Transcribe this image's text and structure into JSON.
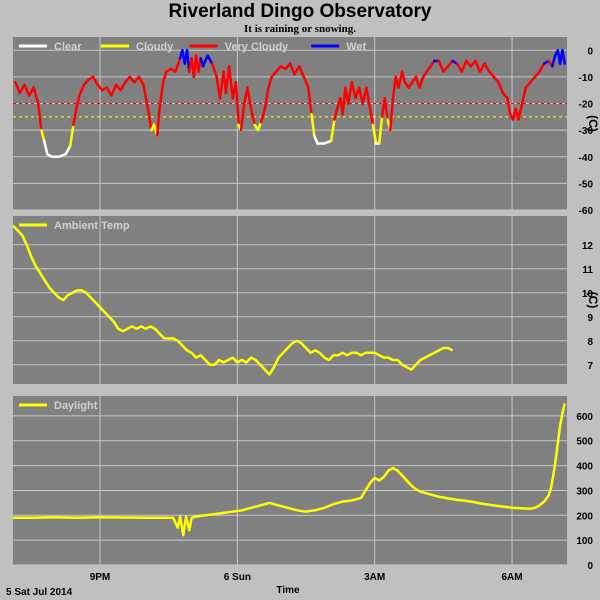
{
  "page": {
    "title": "Riverland Dingo Observatory",
    "subtitle": "It is raining or snowing.",
    "footer_date": "5 Sat Jul 2014",
    "xlabel": "Time"
  },
  "x_ticks": [
    {
      "label": "9PM",
      "hour": 21
    },
    {
      "label": "6 Sun",
      "hour": 24
    },
    {
      "label": "3AM",
      "hour": 27
    },
    {
      "label": "6AM",
      "hour": 30
    }
  ],
  "colors": {
    "plot_bg": "#808080",
    "grid": "#c8c8c8",
    "clear": "#ffffff",
    "cloudy": "#ffff00",
    "very_cloudy": "#ff0000",
    "wet": "#0000ff",
    "ambient": "#ffff00",
    "daylight": "#ffff00"
  },
  "chart_data": [
    {
      "type": "line",
      "name": "sky",
      "xlim": [
        19.1,
        31.2
      ],
      "ylim": [
        -60,
        5
      ],
      "yticks": [
        0,
        -10,
        -20,
        -30,
        -40,
        -50,
        -60
      ],
      "unit": "(C)",
      "thresholds": [
        {
          "y": -20,
          "color": "#ff0000"
        },
        {
          "y": -25,
          "color": "#ffff00"
        }
      ],
      "series": [
        {
          "name": "Clear",
          "color": "#ffffff"
        },
        {
          "name": "Cloudy",
          "color": "#ffff00"
        },
        {
          "name": "Very Cloudy",
          "color": "#ff0000"
        },
        {
          "name": "Wet",
          "color": "#0000ff"
        }
      ],
      "points": [
        [
          19.15,
          -12
        ],
        [
          19.25,
          -16
        ],
        [
          19.35,
          -13
        ],
        [
          19.45,
          -17
        ],
        [
          19.55,
          -14
        ],
        [
          19.65,
          -20
        ],
        [
          19.72,
          -30
        ],
        [
          19.78,
          -34
        ],
        [
          19.85,
          -39
        ],
        [
          19.95,
          -40
        ],
        [
          20.1,
          -40
        ],
        [
          20.25,
          -39
        ],
        [
          20.35,
          -36
        ],
        [
          20.42,
          -28
        ],
        [
          20.48,
          -22
        ],
        [
          20.55,
          -17
        ],
        [
          20.65,
          -13
        ],
        [
          20.75,
          -11
        ],
        [
          20.85,
          -10
        ],
        [
          20.95,
          -13
        ],
        [
          21.05,
          -15
        ],
        [
          21.15,
          -14
        ],
        [
          21.25,
          -17
        ],
        [
          21.35,
          -13
        ],
        [
          21.45,
          -15
        ],
        [
          21.55,
          -12
        ],
        [
          21.65,
          -10
        ],
        [
          21.75,
          -12
        ],
        [
          21.85,
          -10
        ],
        [
          21.95,
          -13
        ],
        [
          22.05,
          -22
        ],
        [
          22.12,
          -30
        ],
        [
          22.18,
          -28
        ],
        [
          22.25,
          -32
        ],
        [
          22.3,
          -22
        ],
        [
          22.38,
          -12
        ],
        [
          22.45,
          -8
        ],
        [
          22.55,
          -7
        ],
        [
          22.65,
          -8
        ],
        [
          22.75,
          -3
        ],
        [
          22.8,
          0
        ],
        [
          22.85,
          -5
        ],
        [
          22.9,
          0
        ],
        [
          22.95,
          -8
        ],
        [
          23.0,
          -3
        ],
        [
          23.05,
          -10
        ],
        [
          23.1,
          -2
        ],
        [
          23.15,
          -8
        ],
        [
          23.2,
          -3
        ],
        [
          23.25,
          -6
        ],
        [
          23.35,
          -2
        ],
        [
          23.45,
          -5
        ],
        [
          23.55,
          -10
        ],
        [
          23.62,
          -18
        ],
        [
          23.7,
          -8
        ],
        [
          23.75,
          -16
        ],
        [
          23.82,
          -6
        ],
        [
          23.9,
          -18
        ],
        [
          23.97,
          -12
        ],
        [
          24.03,
          -28
        ],
        [
          24.08,
          -30
        ],
        [
          24.15,
          -20
        ],
        [
          24.22,
          -14
        ],
        [
          24.3,
          -22
        ],
        [
          24.38,
          -28
        ],
        [
          24.45,
          -30
        ],
        [
          24.52,
          -27
        ],
        [
          24.6,
          -22
        ],
        [
          24.68,
          -14
        ],
        [
          24.75,
          -10
        ],
        [
          24.85,
          -8
        ],
        [
          24.95,
          -6
        ],
        [
          25.05,
          -7
        ],
        [
          25.15,
          -5
        ],
        [
          25.25,
          -9
        ],
        [
          25.35,
          -6
        ],
        [
          25.45,
          -10
        ],
        [
          25.55,
          -14
        ],
        [
          25.62,
          -24
        ],
        [
          25.68,
          -32
        ],
        [
          25.75,
          -35
        ],
        [
          25.9,
          -35
        ],
        [
          26.05,
          -34
        ],
        [
          26.12,
          -26
        ],
        [
          26.18,
          -22
        ],
        [
          26.25,
          -18
        ],
        [
          26.3,
          -24
        ],
        [
          26.36,
          -14
        ],
        [
          26.42,
          -20
        ],
        [
          26.5,
          -12
        ],
        [
          26.58,
          -18
        ],
        [
          26.66,
          -14
        ],
        [
          26.74,
          -20
        ],
        [
          26.82,
          -14
        ],
        [
          26.9,
          -22
        ],
        [
          26.96,
          -28
        ],
        [
          27.03,
          -35
        ],
        [
          27.1,
          -35
        ],
        [
          27.16,
          -25
        ],
        [
          27.22,
          -18
        ],
        [
          27.28,
          -26
        ],
        [
          27.34,
          -30
        ],
        [
          27.4,
          -18
        ],
        [
          27.46,
          -10
        ],
        [
          27.52,
          -14
        ],
        [
          27.6,
          -8
        ],
        [
          27.66,
          -12
        ],
        [
          27.74,
          -14
        ],
        [
          27.82,
          -12
        ],
        [
          27.9,
          -10
        ],
        [
          27.98,
          -14
        ],
        [
          28.06,
          -10
        ],
        [
          28.14,
          -8
        ],
        [
          28.22,
          -6
        ],
        [
          28.3,
          -4
        ],
        [
          28.4,
          -4
        ],
        [
          28.5,
          -8
        ],
        [
          28.6,
          -6
        ],
        [
          28.7,
          -4
        ],
        [
          28.8,
          -5
        ],
        [
          28.9,
          -8
        ],
        [
          29.0,
          -4
        ],
        [
          29.1,
          -6
        ],
        [
          29.2,
          -4
        ],
        [
          29.3,
          -8
        ],
        [
          29.4,
          -5
        ],
        [
          29.5,
          -8
        ],
        [
          29.6,
          -10
        ],
        [
          29.7,
          -12
        ],
        [
          29.8,
          -16
        ],
        [
          29.9,
          -18
        ],
        [
          29.96,
          -24
        ],
        [
          30.02,
          -26
        ],
        [
          30.08,
          -22
        ],
        [
          30.14,
          -26
        ],
        [
          30.22,
          -20
        ],
        [
          30.3,
          -14
        ],
        [
          30.4,
          -12
        ],
        [
          30.5,
          -10
        ],
        [
          30.6,
          -8
        ],
        [
          30.7,
          -5
        ],
        [
          30.8,
          -4
        ],
        [
          30.88,
          -6
        ],
        [
          30.94,
          -2
        ],
        [
          31.0,
          0
        ],
        [
          31.05,
          -5
        ],
        [
          31.1,
          0
        ],
        [
          31.15,
          -5
        ]
      ]
    },
    {
      "type": "line",
      "name": "ambient",
      "title": "Ambient Temp",
      "xlim": [
        19.1,
        31.2
      ],
      "ylim": [
        6.2,
        13.2
      ],
      "yticks": [
        7,
        8,
        9,
        10,
        11,
        12
      ],
      "unit": "(C)",
      "series": [
        {
          "name": "Ambient Temp",
          "color": "#ffff00"
        }
      ],
      "points": [
        [
          19.1,
          12.8
        ],
        [
          19.2,
          12.6
        ],
        [
          19.3,
          12.4
        ],
        [
          19.4,
          12.0
        ],
        [
          19.5,
          11.5
        ],
        [
          19.6,
          11.1
        ],
        [
          19.7,
          10.8
        ],
        [
          19.8,
          10.5
        ],
        [
          19.9,
          10.2
        ],
        [
          20.0,
          10.0
        ],
        [
          20.1,
          9.8
        ],
        [
          20.2,
          9.7
        ],
        [
          20.3,
          9.9
        ],
        [
          20.4,
          10.0
        ],
        [
          20.5,
          10.1
        ],
        [
          20.6,
          10.1
        ],
        [
          20.7,
          10.0
        ],
        [
          20.8,
          9.8
        ],
        [
          20.9,
          9.6
        ],
        [
          21.0,
          9.4
        ],
        [
          21.1,
          9.2
        ],
        [
          21.2,
          9.0
        ],
        [
          21.3,
          8.8
        ],
        [
          21.4,
          8.5
        ],
        [
          21.5,
          8.4
        ],
        [
          21.6,
          8.5
        ],
        [
          21.7,
          8.6
        ],
        [
          21.8,
          8.5
        ],
        [
          21.9,
          8.6
        ],
        [
          22.0,
          8.5
        ],
        [
          22.1,
          8.6
        ],
        [
          22.2,
          8.5
        ],
        [
          22.3,
          8.3
        ],
        [
          22.4,
          8.1
        ],
        [
          22.5,
          8.1
        ],
        [
          22.6,
          8.1
        ],
        [
          22.7,
          8.0
        ],
        [
          22.8,
          7.8
        ],
        [
          22.9,
          7.6
        ],
        [
          23.0,
          7.5
        ],
        [
          23.1,
          7.3
        ],
        [
          23.2,
          7.4
        ],
        [
          23.3,
          7.2
        ],
        [
          23.4,
          7.0
        ],
        [
          23.5,
          7.0
        ],
        [
          23.6,
          7.2
        ],
        [
          23.7,
          7.1
        ],
        [
          23.8,
          7.2
        ],
        [
          23.9,
          7.3
        ],
        [
          24.0,
          7.1
        ],
        [
          24.1,
          7.2
        ],
        [
          24.2,
          7.1
        ],
        [
          24.3,
          7.3
        ],
        [
          24.4,
          7.2
        ],
        [
          24.5,
          7.0
        ],
        [
          24.6,
          6.8
        ],
        [
          24.7,
          6.6
        ],
        [
          24.8,
          6.9
        ],
        [
          24.9,
          7.3
        ],
        [
          25.0,
          7.5
        ],
        [
          25.1,
          7.7
        ],
        [
          25.2,
          7.9
        ],
        [
          25.3,
          8.0
        ],
        [
          25.4,
          7.9
        ],
        [
          25.5,
          7.7
        ],
        [
          25.6,
          7.5
        ],
        [
          25.7,
          7.6
        ],
        [
          25.8,
          7.5
        ],
        [
          25.9,
          7.3
        ],
        [
          26.0,
          7.2
        ],
        [
          26.1,
          7.4
        ],
        [
          26.2,
          7.4
        ],
        [
          26.3,
          7.5
        ],
        [
          26.4,
          7.4
        ],
        [
          26.5,
          7.5
        ],
        [
          26.6,
          7.5
        ],
        [
          26.7,
          7.4
        ],
        [
          26.8,
          7.5
        ],
        [
          26.9,
          7.5
        ],
        [
          27.0,
          7.5
        ],
        [
          27.1,
          7.4
        ],
        [
          27.2,
          7.3
        ],
        [
          27.3,
          7.3
        ],
        [
          27.4,
          7.2
        ],
        [
          27.5,
          7.2
        ],
        [
          27.6,
          7.0
        ],
        [
          27.7,
          6.9
        ],
        [
          27.8,
          6.8
        ],
        [
          27.9,
          7.0
        ],
        [
          28.0,
          7.2
        ],
        [
          28.1,
          7.3
        ],
        [
          28.2,
          7.4
        ],
        [
          28.3,
          7.5
        ],
        [
          28.4,
          7.6
        ],
        [
          28.5,
          7.7
        ],
        [
          28.6,
          7.7
        ],
        [
          28.7,
          7.6
        ]
      ]
    },
    {
      "type": "line",
      "name": "daylight",
      "title": "Daylight",
      "xlim": [
        19.1,
        31.2
      ],
      "ylim": [
        0,
        680
      ],
      "yticks": [
        0,
        100,
        200,
        300,
        400,
        500,
        600
      ],
      "series": [
        {
          "name": "Daylight",
          "color": "#ffff00"
        }
      ],
      "points": [
        [
          19.1,
          190
        ],
        [
          19.5,
          190
        ],
        [
          20.0,
          192
        ],
        [
          20.5,
          190
        ],
        [
          21.0,
          192
        ],
        [
          21.5,
          191
        ],
        [
          22.0,
          190
        ],
        [
          22.4,
          190
        ],
        [
          22.6,
          190
        ],
        [
          22.7,
          150
        ],
        [
          22.75,
          195
        ],
        [
          22.82,
          120
        ],
        [
          22.88,
          195
        ],
        [
          22.95,
          140
        ],
        [
          23.0,
          190
        ],
        [
          23.1,
          195
        ],
        [
          23.3,
          200
        ],
        [
          23.5,
          205
        ],
        [
          23.7,
          210
        ],
        [
          23.9,
          215
        ],
        [
          24.1,
          220
        ],
        [
          24.3,
          230
        ],
        [
          24.5,
          240
        ],
        [
          24.7,
          250
        ],
        [
          24.9,
          240
        ],
        [
          25.1,
          230
        ],
        [
          25.3,
          220
        ],
        [
          25.5,
          215
        ],
        [
          25.7,
          220
        ],
        [
          25.9,
          230
        ],
        [
          26.1,
          245
        ],
        [
          26.3,
          255
        ],
        [
          26.5,
          260
        ],
        [
          26.7,
          270
        ],
        [
          26.8,
          300
        ],
        [
          26.9,
          330
        ],
        [
          27.0,
          350
        ],
        [
          27.1,
          340
        ],
        [
          27.2,
          355
        ],
        [
          27.3,
          380
        ],
        [
          27.4,
          390
        ],
        [
          27.5,
          380
        ],
        [
          27.6,
          360
        ],
        [
          27.7,
          340
        ],
        [
          27.8,
          320
        ],
        [
          27.9,
          305
        ],
        [
          28.0,
          295
        ],
        [
          28.2,
          285
        ],
        [
          28.4,
          275
        ],
        [
          28.6,
          268
        ],
        [
          28.8,
          262
        ],
        [
          29.0,
          258
        ],
        [
          29.2,
          252
        ],
        [
          29.4,
          245
        ],
        [
          29.6,
          240
        ],
        [
          29.8,
          235
        ],
        [
          30.0,
          230
        ],
        [
          30.2,
          228
        ],
        [
          30.4,
          226
        ],
        [
          30.5,
          230
        ],
        [
          30.6,
          240
        ],
        [
          30.7,
          255
        ],
        [
          30.8,
          280
        ],
        [
          30.85,
          310
        ],
        [
          30.9,
          360
        ],
        [
          30.95,
          420
        ],
        [
          31.0,
          490
        ],
        [
          31.05,
          560
        ],
        [
          31.1,
          610
        ],
        [
          31.15,
          650
        ]
      ]
    }
  ]
}
